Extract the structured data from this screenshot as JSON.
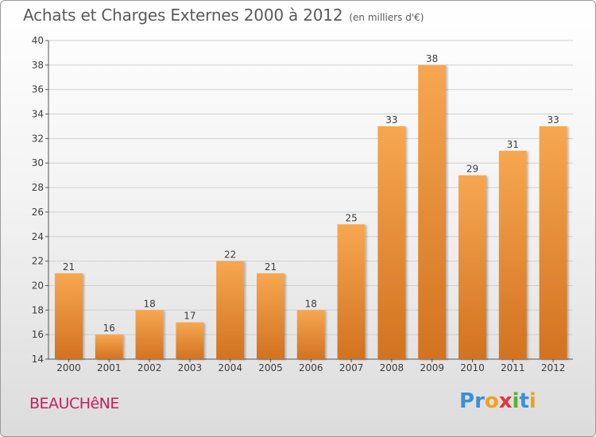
{
  "header": {
    "title": "Achats et Charges Externes 2000 à 2012",
    "unit": "(en milliers d'€)"
  },
  "footer": {
    "place": "BEAUCHêNE",
    "logo_letters": [
      "P",
      "r",
      "o",
      "x",
      "i",
      "t",
      "i"
    ]
  },
  "colors": {
    "bar_top": "#f7a750",
    "bar_bottom": "#d27220",
    "place": "#c2215b",
    "grid": "#cfcfcf"
  },
  "chart_data": {
    "type": "bar",
    "categories": [
      "2000",
      "2001",
      "2002",
      "2003",
      "2004",
      "2005",
      "2006",
      "2007",
      "2008",
      "2009",
      "2010",
      "2011",
      "2012"
    ],
    "values": [
      21,
      16,
      18,
      17,
      22,
      21,
      18,
      25,
      33,
      38,
      29,
      31,
      33
    ],
    "ylim": [
      14,
      40
    ],
    "yticks": [
      14,
      16,
      18,
      20,
      22,
      24,
      26,
      28,
      30,
      32,
      34,
      36,
      38,
      40
    ],
    "grid": true,
    "data_labels": true
  }
}
